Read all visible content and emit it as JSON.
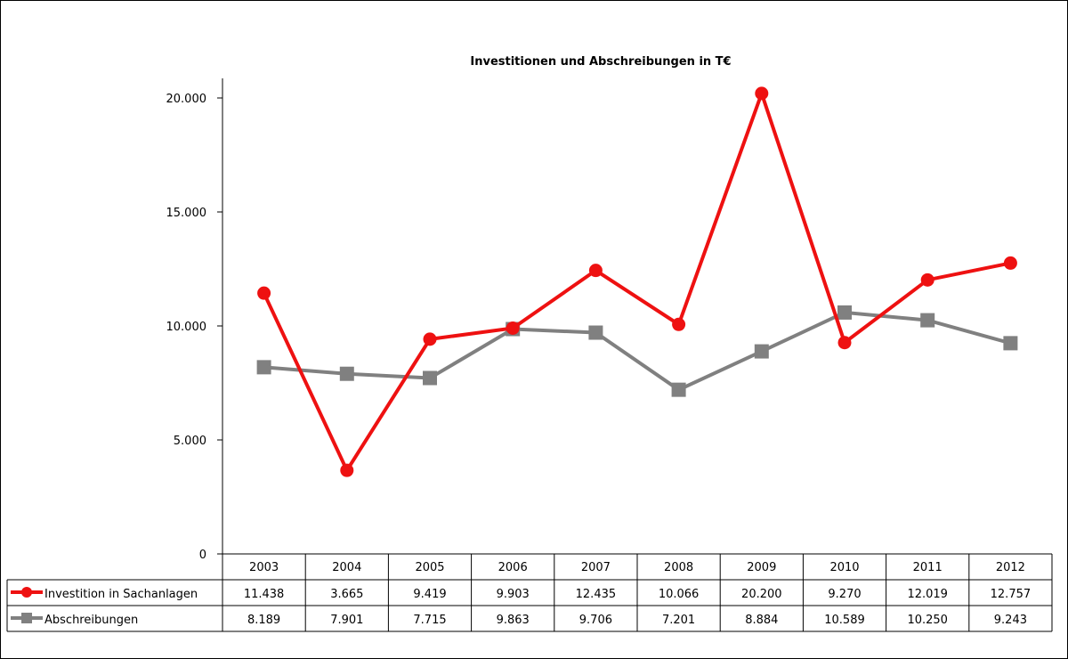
{
  "chart_data": {
    "type": "line",
    "title": "Investitionen und Abschreibungen in T€",
    "xlabel": "",
    "ylabel": "",
    "ylim": [
      0,
      20000
    ],
    "y_ticks": [
      "0",
      "5.000",
      "10.000",
      "15.000",
      "20.000"
    ],
    "y_tick_values": [
      0,
      5000,
      10000,
      15000,
      20000
    ],
    "categories": [
      "2003",
      "2004",
      "2005",
      "2006",
      "2007",
      "2008",
      "2009",
      "2010",
      "2011",
      "2012"
    ],
    "grid": false,
    "legend": "data-table-left",
    "series": [
      {
        "name": "Investition in Sachanlagen",
        "color": "#ee1111",
        "marker": "circle",
        "values": [
          11438,
          3665,
          9419,
          9903,
          12435,
          10066,
          20200,
          9270,
          12019,
          12757
        ],
        "labels": [
          "11.438",
          "3.665",
          "9.419",
          "9.903",
          "12.435",
          "10.066",
          "20.200",
          "9.270",
          "12.019",
          "12.757"
        ]
      },
      {
        "name": "Abschreibungen",
        "color": "#808080",
        "marker": "square",
        "values": [
          8189,
          7901,
          7715,
          9863,
          9706,
          7201,
          8884,
          10589,
          10250,
          9243
        ],
        "labels": [
          "8.189",
          "7.901",
          "7.715",
          "9.863",
          "9.706",
          "7.201",
          "8.884",
          "10.589",
          "10.250",
          "9.243"
        ]
      }
    ]
  }
}
